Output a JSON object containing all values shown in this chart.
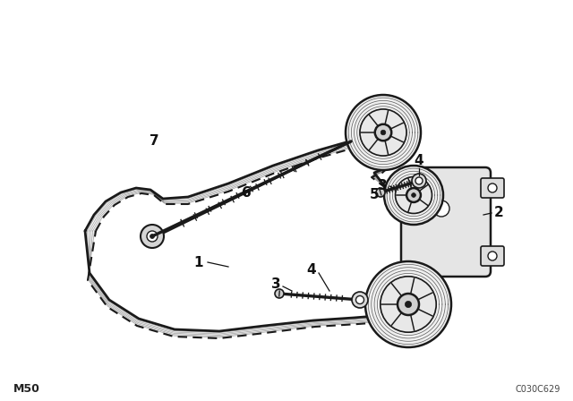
{
  "background_color": "#ffffff",
  "bottom_left_text": "M50",
  "bottom_right_text": "C030C629",
  "line_color": "#1a1a1a",
  "line_width": 1.2,
  "figsize": [
    6.4,
    4.48
  ],
  "dpi": 100
}
